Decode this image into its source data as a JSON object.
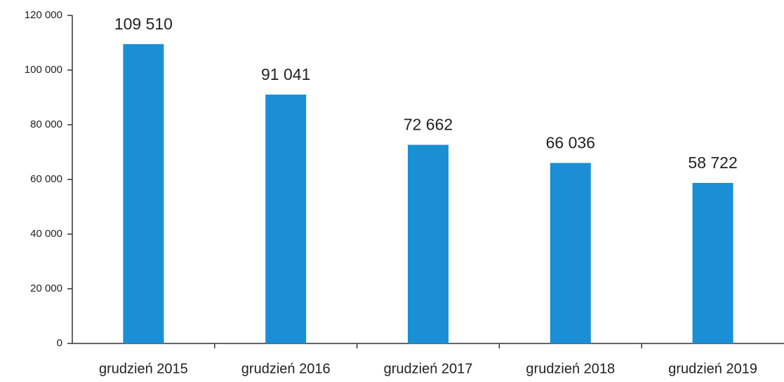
{
  "chart_data": {
    "type": "bar",
    "categories": [
      "grudzień 2015",
      "grudzień 2016",
      "grudzień 2017",
      "grudzień 2018",
      "grudzień 2019"
    ],
    "values": [
      109510,
      91041,
      72662,
      66036,
      58722
    ],
    "value_labels": [
      "109 510",
      "91 041",
      "72 662",
      "66 036",
      "58 722"
    ],
    "color": "#1a8fd6",
    "ylim": [
      0,
      120000
    ],
    "yticks": [
      0,
      {
        "value": 20000,
        "label": "20 000"
      },
      {
        "value": 40000,
        "label": "40 000"
      },
      {
        "value": 60000,
        "label": "60 000"
      },
      {
        "value": 80000,
        "label": "80 000"
      },
      {
        "value": 100000,
        "label": "100 000"
      },
      {
        "value": 120000,
        "label": "120 000"
      }
    ],
    "grid": false
  }
}
